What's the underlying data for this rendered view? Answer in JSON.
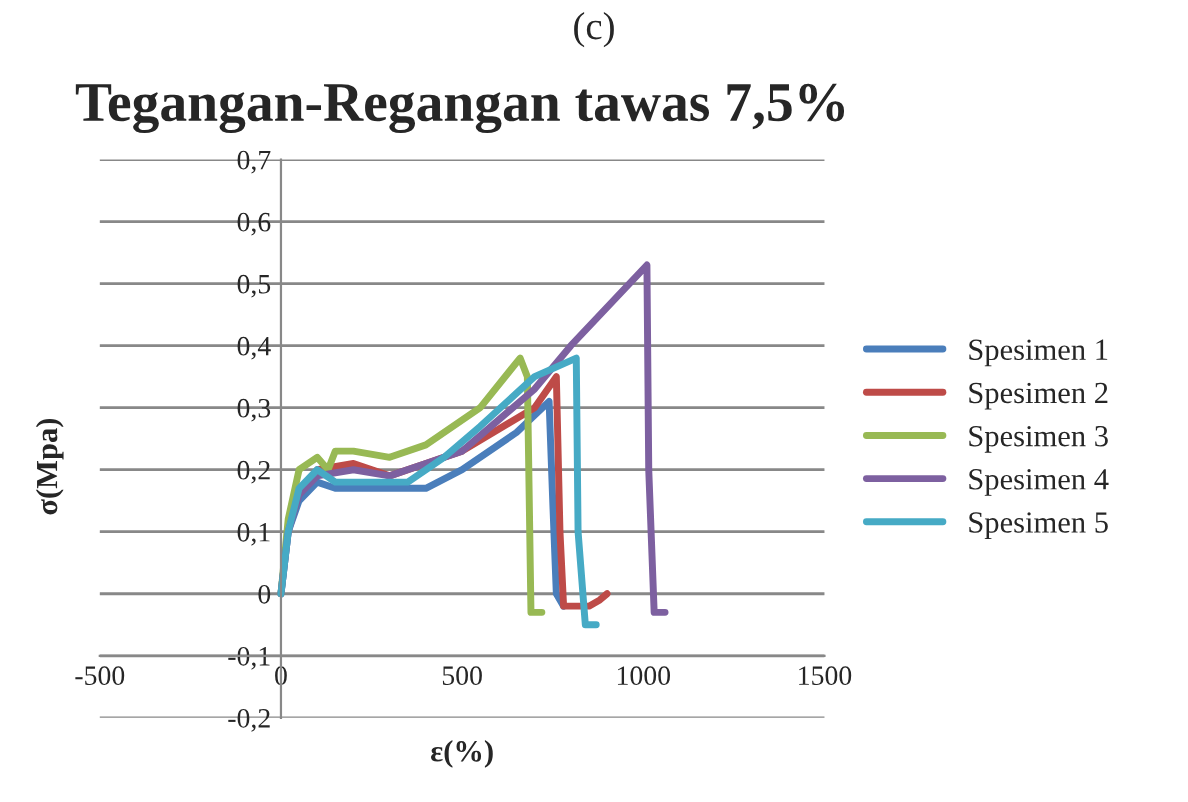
{
  "chart_data": {
    "type": "line",
    "title": "Tegangan-Regangan tawas 7,5%",
    "xlabel": "ε(%)",
    "ylabel": "σ(Mpa)",
    "annotations": [
      "(c)"
    ],
    "xlim": [
      -500,
      1500
    ],
    "xticks": [
      -500,
      0,
      500,
      1000,
      1500
    ],
    "ylim": [
      -0.2,
      0.7
    ],
    "yticks": [
      {
        "value": -0.2,
        "label": "-0,2"
      },
      {
        "value": -0.1,
        "label": "-0,1"
      },
      {
        "value": 0,
        "label": "0"
      },
      {
        "value": 0.1,
        "label": "0,1"
      },
      {
        "value": 0.2,
        "label": "0,2"
      },
      {
        "value": 0.3,
        "label": "0,3"
      },
      {
        "value": 0.4,
        "label": "0,4"
      },
      {
        "value": 0.5,
        "label": "0,5"
      },
      {
        "value": 0.6,
        "label": "0,6"
      },
      {
        "value": 0.7,
        "label": "0,7"
      }
    ],
    "grid": "y",
    "legend": "right",
    "marker": "none",
    "line_style": "solid",
    "series": [
      {
        "name": "Spesimen 1",
        "color": "#4a7ebb",
        "x": [
          0,
          20,
          50,
          100,
          150,
          200,
          300,
          400,
          500,
          650,
          740,
          750,
          760,
          780
        ],
        "values": [
          0,
          0.1,
          0.15,
          0.18,
          0.17,
          0.17,
          0.17,
          0.17,
          0.2,
          0.26,
          0.31,
          0.15,
          0,
          -0.02
        ]
      },
      {
        "name": "Spesimen 2",
        "color": "#be4b48",
        "x": [
          50,
          100,
          200,
          300,
          400,
          500,
          700,
          760,
          770,
          780,
          850,
          880,
          900
        ],
        "values": [
          0.16,
          0.2,
          0.21,
          0.19,
          0.21,
          0.23,
          0.3,
          0.35,
          0.1,
          -0.02,
          -0.02,
          -0.01,
          0
        ]
      },
      {
        "name": "Spesimen 3",
        "color": "#98b954",
        "x": [
          0,
          20,
          50,
          100,
          130,
          150,
          200,
          300,
          400,
          550,
          660,
          680,
          690,
          720
        ],
        "values": [
          0,
          0.12,
          0.2,
          0.22,
          0.2,
          0.23,
          0.23,
          0.22,
          0.24,
          0.3,
          0.38,
          0.35,
          -0.03,
          -0.03
        ]
      },
      {
        "name": "Spesimen 4",
        "color": "#7d60a0",
        "x": [
          0,
          20,
          50,
          100,
          200,
          300,
          400,
          500,
          700,
          800,
          1010,
          1015,
          1030,
          1060
        ],
        "values": [
          0,
          0.1,
          0.16,
          0.19,
          0.2,
          0.19,
          0.21,
          0.23,
          0.33,
          0.4,
          0.53,
          0.2,
          -0.03,
          -0.03
        ]
      },
      {
        "name": "Spesimen 5",
        "color": "#46aac5",
        "x": [
          0,
          20,
          50,
          100,
          150,
          200,
          350,
          450,
          550,
          700,
          815,
          820,
          840,
          870
        ],
        "values": [
          0,
          0.1,
          0.17,
          0.2,
          0.18,
          0.18,
          0.18,
          0.22,
          0.27,
          0.35,
          0.38,
          0.1,
          -0.05,
          -0.05
        ]
      }
    ]
  }
}
